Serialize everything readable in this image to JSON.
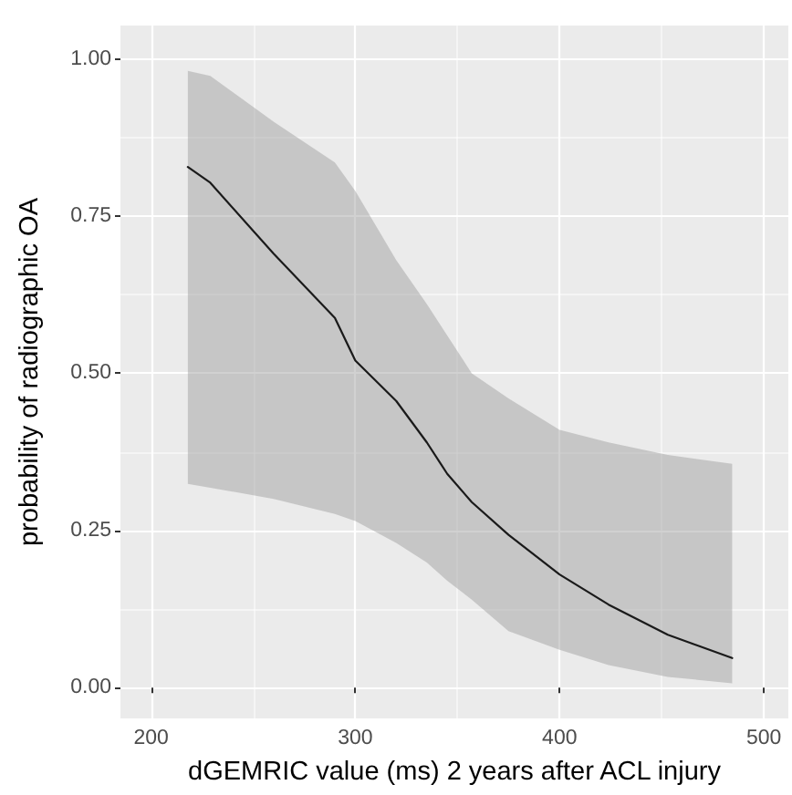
{
  "chart_data": {
    "type": "line",
    "xlabel": "dGEMRIC value (ms) 2 years after ACL injury",
    "ylabel": "probability of radiographic OA",
    "series": [
      {
        "color": "#1a1a1a",
        "x": [
          218,
          229,
          260,
          290,
          300,
          320,
          335,
          345,
          357,
          375,
          400,
          424,
          453,
          484.5
        ],
        "values": [
          0.828,
          0.803,
          0.69,
          0.588,
          0.52,
          0.456,
          0.39,
          0.34,
          0.295,
          0.243,
          0.18,
          0.132,
          0.084,
          0.047
        ],
        "lower": [
          0.324,
          0.318,
          0.3,
          0.276,
          0.265,
          0.23,
          0.199,
          0.17,
          0.14,
          0.09,
          0.06,
          0.036,
          0.017,
          0.007
        ],
        "upper": [
          0.981,
          0.973,
          0.9,
          0.835,
          0.79,
          0.68,
          0.61,
          0.56,
          0.5,
          0.46,
          0.41,
          0.39,
          0.37,
          0.356
        ]
      }
    ],
    "xlim": [
      185,
      512
    ],
    "ylim": [
      -0.049,
      1.053
    ],
    "xticks": [
      200,
      300,
      400,
      500
    ],
    "yticks": [
      {
        "value": 0,
        "label": "0.00"
      },
      {
        "value": 0.25,
        "label": "0.25"
      },
      {
        "value": 0.5,
        "label": "0.50"
      },
      {
        "value": 0.75,
        "label": "0.75"
      },
      {
        "value": 1,
        "label": "1.00"
      }
    ],
    "grid": true,
    "marker": "none",
    "line_style": "solid"
  }
}
